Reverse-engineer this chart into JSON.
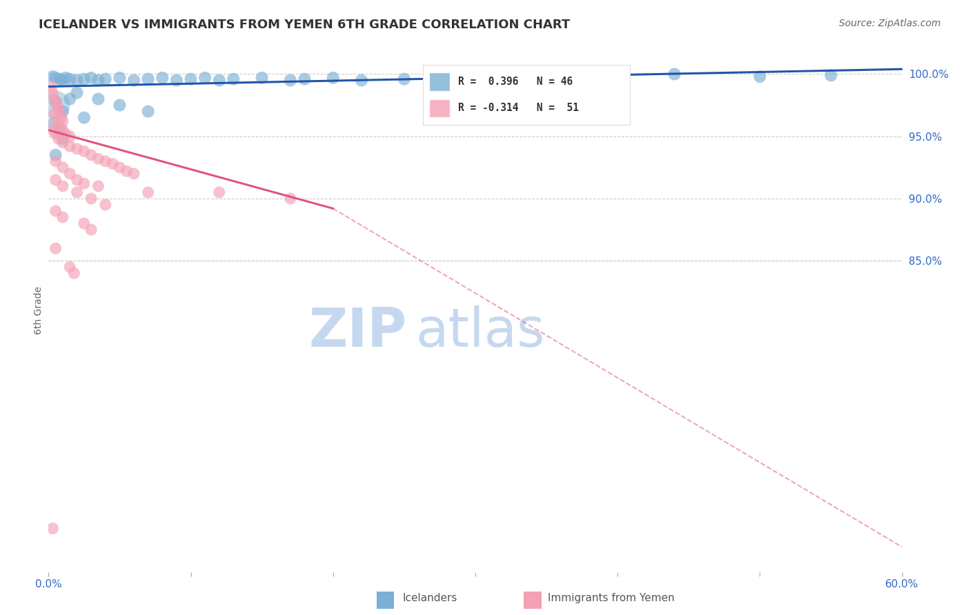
{
  "title": "ICELANDER VS IMMIGRANTS FROM YEMEN 6TH GRADE CORRELATION CHART",
  "source": "Source: ZipAtlas.com",
  "ylabel_label": "6th Grade",
  "ylabel_ticks": [
    85.0,
    90.0,
    95.0,
    100.0
  ],
  "ylabel_tick_labels": [
    "85.0%",
    "90.0%",
    "95.0%",
    "100.0%"
  ],
  "x_min": 0.0,
  "x_max": 60.0,
  "y_min": 60.0,
  "y_max": 102.0,
  "legend_blue_label": "R =  0.396   N = 46",
  "legend_pink_label": "R = -0.314   N =  51",
  "legend_blue_label_color": "#3a6fbf",
  "legend_pink_label_color": "#cc3366",
  "blue_color": "#7bafd4",
  "pink_color": "#f4a0b5",
  "blue_line_color": "#2255aa",
  "pink_line_color": "#e05580",
  "watermark_color": "#c5d8f0",
  "blue_dots": [
    [
      0.3,
      99.8
    ],
    [
      0.5,
      99.7
    ],
    [
      0.8,
      99.6
    ],
    [
      1.0,
      99.5
    ],
    [
      1.2,
      99.7
    ],
    [
      1.5,
      99.6
    ],
    [
      2.0,
      99.5
    ],
    [
      2.5,
      99.6
    ],
    [
      3.0,
      99.7
    ],
    [
      3.5,
      99.5
    ],
    [
      4.0,
      99.6
    ],
    [
      5.0,
      99.7
    ],
    [
      6.0,
      99.5
    ],
    [
      7.0,
      99.6
    ],
    [
      8.0,
      99.7
    ],
    [
      9.0,
      99.5
    ],
    [
      10.0,
      99.6
    ],
    [
      11.0,
      99.7
    ],
    [
      12.0,
      99.5
    ],
    [
      13.0,
      99.6
    ],
    [
      15.0,
      99.7
    ],
    [
      17.0,
      99.5
    ],
    [
      18.0,
      99.6
    ],
    [
      20.0,
      99.7
    ],
    [
      22.0,
      99.5
    ],
    [
      25.0,
      99.6
    ],
    [
      28.0,
      99.7
    ],
    [
      30.0,
      99.5
    ],
    [
      34.0,
      99.6
    ],
    [
      40.0,
      100.0
    ],
    [
      44.0,
      100.0
    ],
    [
      50.0,
      99.8
    ],
    [
      55.0,
      99.9
    ],
    [
      2.0,
      98.5
    ],
    [
      3.5,
      98.0
    ],
    [
      5.0,
      97.5
    ],
    [
      7.0,
      97.0
    ],
    [
      0.5,
      97.8
    ],
    [
      1.0,
      97.0
    ],
    [
      1.5,
      98.0
    ],
    [
      2.5,
      96.5
    ],
    [
      0.3,
      96.0
    ],
    [
      0.8,
      95.5
    ],
    [
      1.0,
      94.8
    ],
    [
      0.5,
      93.5
    ]
  ],
  "pink_dots": [
    [
      0.2,
      99.0
    ],
    [
      0.3,
      98.5
    ],
    [
      0.4,
      98.0
    ],
    [
      0.5,
      97.8
    ],
    [
      0.6,
      97.5
    ],
    [
      0.7,
      97.2
    ],
    [
      0.8,
      96.8
    ],
    [
      0.9,
      96.5
    ],
    [
      1.0,
      96.2
    ],
    [
      0.4,
      96.8
    ],
    [
      0.6,
      96.2
    ],
    [
      0.8,
      95.8
    ],
    [
      1.0,
      95.5
    ],
    [
      1.2,
      95.2
    ],
    [
      1.5,
      95.0
    ],
    [
      0.3,
      95.5
    ],
    [
      0.5,
      95.2
    ],
    [
      0.7,
      94.8
    ],
    [
      1.0,
      94.5
    ],
    [
      1.5,
      94.2
    ],
    [
      2.0,
      94.0
    ],
    [
      2.5,
      93.8
    ],
    [
      3.0,
      93.5
    ],
    [
      3.5,
      93.2
    ],
    [
      4.0,
      93.0
    ],
    [
      4.5,
      92.8
    ],
    [
      5.0,
      92.5
    ],
    [
      5.5,
      92.2
    ],
    [
      6.0,
      92.0
    ],
    [
      0.5,
      93.0
    ],
    [
      1.0,
      92.5
    ],
    [
      1.5,
      92.0
    ],
    [
      2.0,
      91.5
    ],
    [
      2.5,
      91.2
    ],
    [
      3.5,
      91.0
    ],
    [
      7.0,
      90.5
    ],
    [
      12.0,
      90.5
    ],
    [
      17.0,
      90.0
    ],
    [
      0.5,
      91.5
    ],
    [
      1.0,
      91.0
    ],
    [
      2.0,
      90.5
    ],
    [
      3.0,
      90.0
    ],
    [
      4.0,
      89.5
    ],
    [
      0.5,
      89.0
    ],
    [
      1.0,
      88.5
    ],
    [
      2.5,
      88.0
    ],
    [
      3.0,
      87.5
    ],
    [
      0.5,
      86.0
    ],
    [
      1.5,
      84.5
    ],
    [
      1.8,
      84.0
    ],
    [
      0.3,
      63.5
    ]
  ],
  "blue_large_dot": [
    0.5,
    97.5
  ],
  "pink_trendline_solid": [
    [
      0.0,
      95.5
    ],
    [
      20.0,
      89.2
    ]
  ],
  "pink_trendline_dashed": [
    [
      20.0,
      89.2
    ],
    [
      60.0,
      62.0
    ]
  ],
  "blue_trendline": [
    [
      0.0,
      99.0
    ],
    [
      60.0,
      100.4
    ]
  ]
}
